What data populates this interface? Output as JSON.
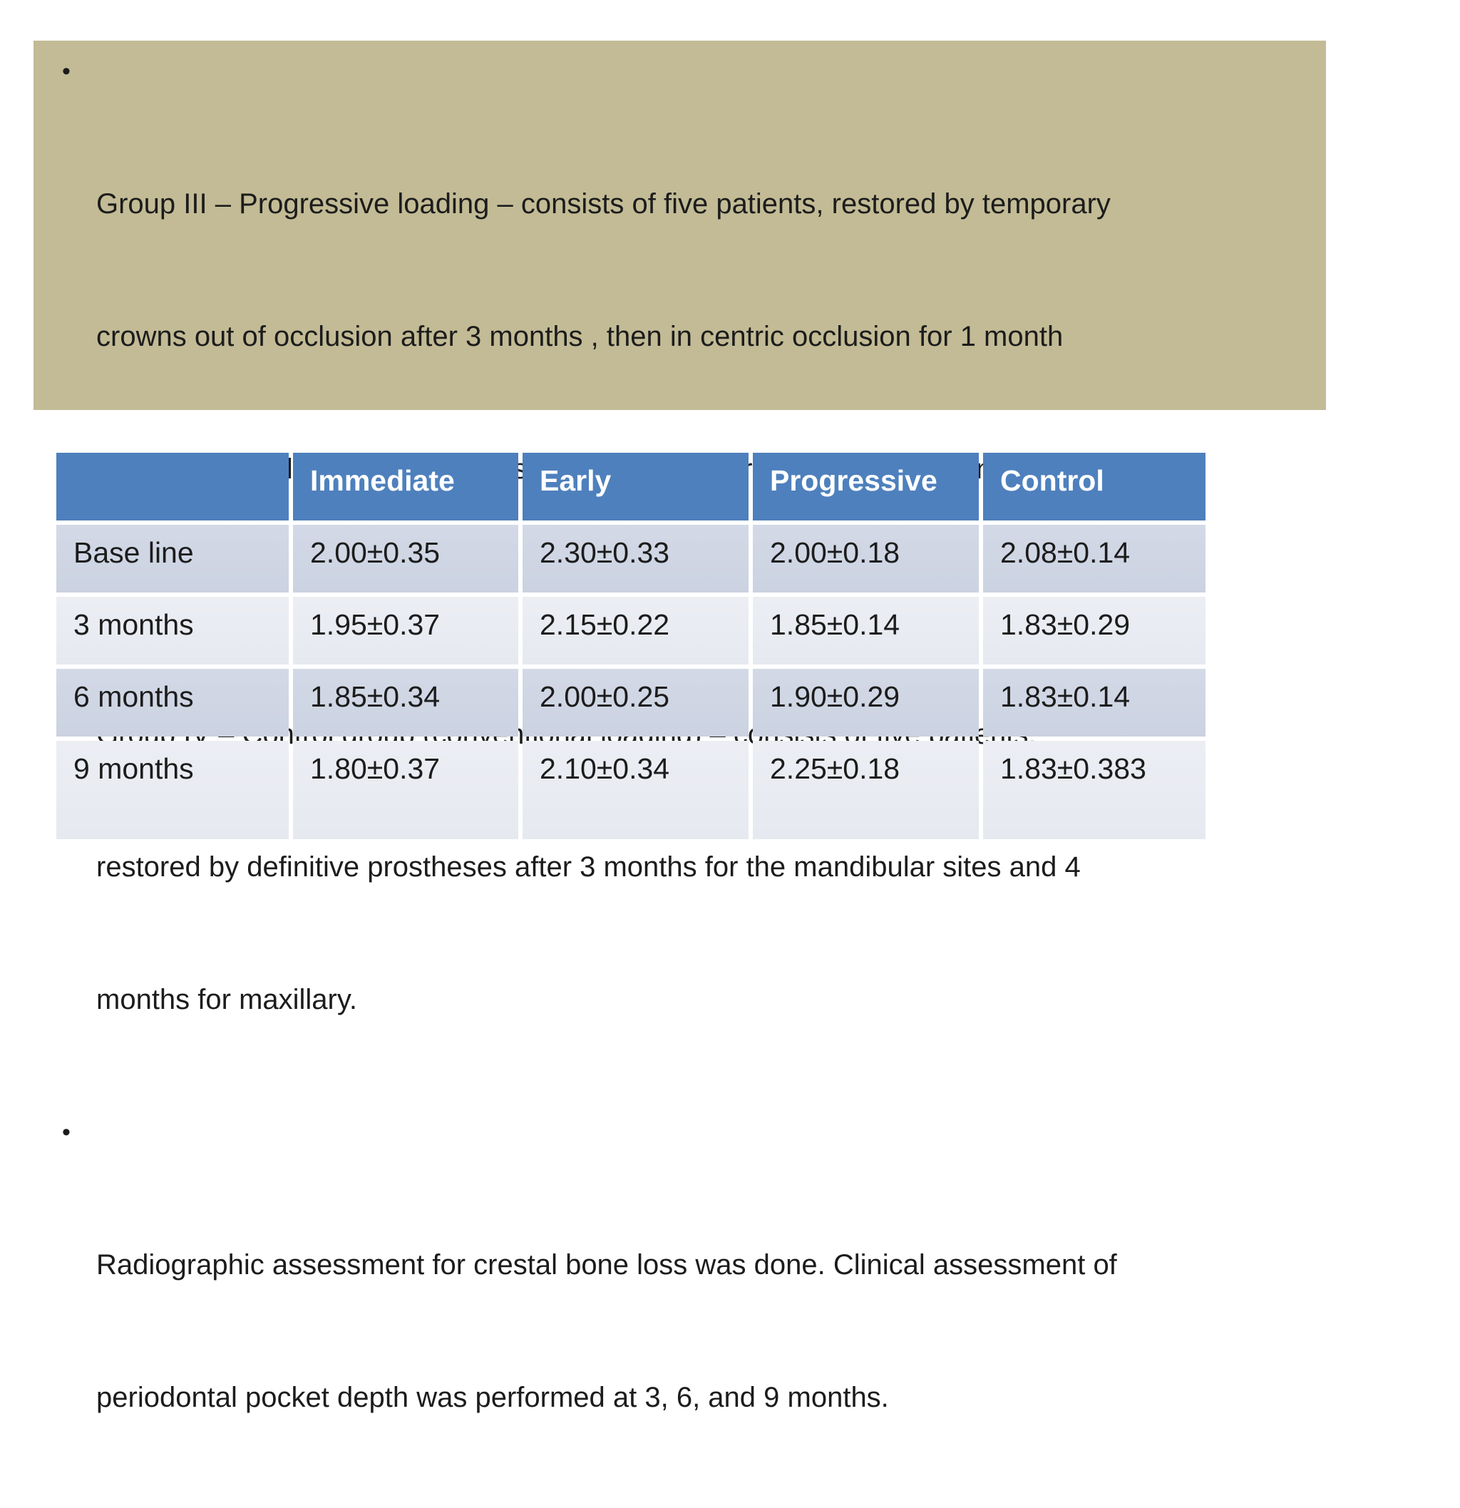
{
  "slide": {
    "background_color": "#ffffff",
    "text_block": {
      "background_color": "#c2bb95",
      "text_color": "#1c1c1c",
      "bullet_glyph": "•",
      "bullets": [
        {
          "text": "Group III – Progressive loading – consists of five patients, restored by temporary crowns out of occlusion after 3 months , then in centric occlusion for 1 month then  in full occlusion for 2 months, then definitive prostheses were done.",
          "lines": [
            "Group III – Progressive loading – consists of five patients, restored by temporary",
            "crowns out of occlusion after 3 months , then in centric occlusion for 1 month",
            "then  in full occlusion for 2 months, then definitive prostheses were done."
          ]
        },
        {
          "text": "Group IV – Control group (conventional loading) – consists of five patients, restored by definitive prostheses after 3 months for the mandibular sites and 4 months for maxillary.",
          "lines": [
            "Group IV – Control group (conventional loading) – consists of five patients,",
            "restored by definitive prostheses after 3 months for the mandibular sites and 4",
            "months for maxillary."
          ]
        },
        {
          "text": "Radiographic assessment for crestal bone loss was done. Clinical assessment of periodontal pocket depth was performed at 3, 6, and 9 months.",
          "lines": [
            "Radiographic assessment for crestal bone loss was done. Clinical assessment of",
            "periodontal pocket depth was performed at 3, 6, and 9 months."
          ]
        }
      ]
    },
    "table": {
      "header_background": "#4e80bd",
      "header_text_color": "#ffffff",
      "band_dark_color": "#d0d6e4",
      "band_light_color": "#e9ebf2",
      "gridline_color": "#ffffff",
      "columns": [
        "",
        "Immediate",
        "Early",
        "Progressive",
        "Control"
      ],
      "rows": [
        {
          "label": "Base line",
          "values": [
            "2.00±0.35",
            "2.30±0.33",
            "2.00±0.18",
            "2.08±0.14"
          ]
        },
        {
          "label": "3 months",
          "values": [
            "1.95±0.37",
            "2.15±0.22",
            "1.85±0.14",
            "1.83±0.29"
          ]
        },
        {
          "label": "6 months",
          "values": [
            "1.85±0.34",
            "2.00±0.25",
            "1.90±0.29",
            "1.83±0.14"
          ]
        },
        {
          "label": "9 months",
          "values": [
            "1.80±0.37",
            "2.10±0.34",
            "2.25±0.18",
            "1.83±0.383"
          ]
        }
      ]
    }
  }
}
